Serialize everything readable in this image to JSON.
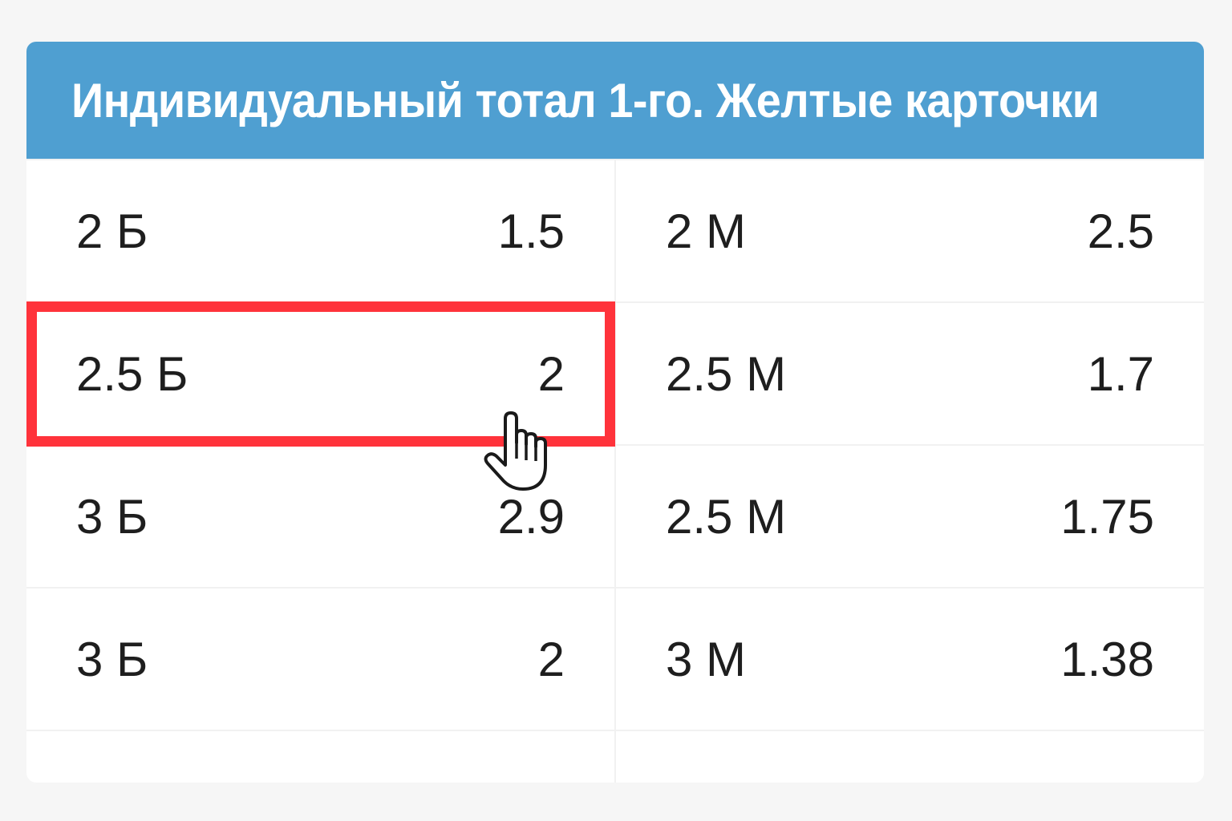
{
  "title": "Индивидуальный тотал 1-го. Желтые карточки",
  "rows": [
    [
      {
        "label": "2 Б",
        "odds": "1.5"
      },
      {
        "label": "2 М",
        "odds": "2.5"
      }
    ],
    [
      {
        "label": "2.5 Б",
        "odds": "2"
      },
      {
        "label": "2.5 М",
        "odds": "1.7"
      }
    ],
    [
      {
        "label": "3 Б",
        "odds": "2.9"
      },
      {
        "label": "2.5 М",
        "odds": "1.75"
      }
    ],
    [
      {
        "label": "3 Б",
        "odds": "2"
      },
      {
        "label": "3 М",
        "odds": "1.38"
      }
    ]
  ],
  "highlighted": {
    "row": 1,
    "column": 0,
    "color": "#ff333b"
  },
  "header_color": "#4f9fd1",
  "cursor_icon": "hand-pointer-icon"
}
